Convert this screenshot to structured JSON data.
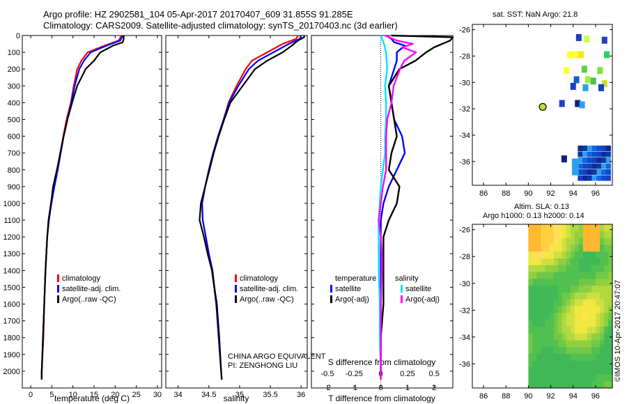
{
  "header": {
    "line1": "Argo profile: HZ 2902581_104 05-Apr-2017 20170407_609 31.855S 91.285E",
    "line2": "Climatology: CARS2009. Satellite-adjusted climatology: synTS_20170403.nc (3d earlier)"
  },
  "sst_panel": {
    "title": "sat. SST: NaN Argo: 21.8"
  },
  "sla_panel": {
    "title_line1": "Altim. SLA: 0.13",
    "title_line2": "Argo h1000: 0.13 h2000: 0.14"
  },
  "credit": {
    "line1": "CHINA ARGO EQUIVALENT",
    "line2": "PI: ZENGHONG LIU"
  },
  "watermark": "©IMOS 10-Apr-2017 20:47:07",
  "colors": {
    "climatology": "#ff0000",
    "satellite": "#0000ff",
    "argo": "#000000",
    "sal_satellite": "#00e5ff",
    "sal_argo": "#ff00ff"
  },
  "chart_data": [
    {
      "type": "line",
      "name": "temperature-profile",
      "xlabel": "temperature (deg C)",
      "ylabel": "",
      "xlim": [
        -2,
        31
      ],
      "ylim": [
        2100,
        0
      ],
      "xticks": [
        0,
        5,
        10,
        15,
        20,
        25,
        30
      ],
      "yticks": [
        0,
        100,
        200,
        300,
        400,
        500,
        600,
        700,
        800,
        900,
        1000,
        1100,
        1200,
        1300,
        1400,
        1500,
        1600,
        1700,
        1800,
        1900,
        2000
      ],
      "legend": [
        "climatology",
        "satellite-adj. clim.",
        "Argo(..raw -QC)"
      ],
      "series": [
        {
          "name": "climatology",
          "depth": [
            0,
            30,
            60,
            100,
            150,
            200,
            300,
            400,
            500,
            600,
            700,
            800,
            900,
            1000,
            1100,
            1200,
            1400,
            1600,
            1800,
            2000,
            2050
          ],
          "values": [
            21.5,
            20.8,
            17.5,
            13.5,
            12.0,
            11.0,
            10.2,
            9.5,
            8.5,
            7.7,
            7.0,
            6.3,
            5.5,
            4.8,
            4.3,
            3.9,
            3.5,
            3.2,
            3.0,
            2.6,
            2.6
          ]
        },
        {
          "name": "satellite-adj. clim.",
          "depth": [
            0,
            30,
            60,
            100,
            150,
            200,
            300,
            400,
            500,
            600,
            700,
            800,
            900,
            1000,
            1100,
            1200,
            1400,
            1600,
            1800,
            2000,
            2050
          ],
          "values": [
            21.8,
            21.2,
            18.0,
            14.2,
            12.6,
            11.5,
            10.4,
            9.6,
            8.7,
            7.8,
            7.1,
            6.4,
            5.6,
            4.9,
            4.3,
            3.9,
            3.5,
            3.2,
            2.9,
            2.6,
            2.6
          ]
        },
        {
          "name": "Argo(..raw -QC)",
          "depth": [
            0,
            20,
            40,
            60,
            100,
            150,
            200,
            300,
            400,
            500,
            600,
            700,
            800,
            900,
            1000,
            1100,
            1200,
            1400,
            1600,
            1800,
            2000,
            2050
          ],
          "values": [
            22.0,
            22.0,
            21.8,
            19.5,
            16.5,
            15.0,
            13.0,
            11.0,
            9.8,
            8.7,
            7.8,
            7.0,
            6.2,
            5.3,
            4.8,
            4.2,
            3.9,
            3.5,
            3.2,
            2.9,
            2.6,
            2.6
          ]
        }
      ]
    },
    {
      "type": "line",
      "name": "salinity-profile",
      "xlabel": "salinity",
      "xlim": [
        33.8,
        36.1
      ],
      "ylim": [
        2100,
        0
      ],
      "xticks": [
        "34",
        "34.5",
        "35",
        "35.5",
        "36"
      ],
      "legend": [
        "climatology",
        "satellite-adj. clim.",
        "Argo(..raw -QC)"
      ],
      "series": [
        {
          "name": "climatology",
          "depth": [
            0,
            20,
            50,
            100,
            150,
            200,
            300,
            400,
            500,
            600,
            700,
            800,
            900,
            1000,
            1100,
            1200,
            1300,
            1400,
            1600,
            1800,
            2000,
            2050
          ],
          "values": [
            35.95,
            35.92,
            35.7,
            35.45,
            35.2,
            35.1,
            34.95,
            34.82,
            34.74,
            34.65,
            34.57,
            34.5,
            34.44,
            34.39,
            34.4,
            34.45,
            34.5,
            34.55,
            34.62,
            34.66,
            34.7,
            34.71
          ]
        },
        {
          "name": "satellite-adj. clim.",
          "depth": [
            0,
            20,
            50,
            100,
            150,
            200,
            300,
            400,
            500,
            600,
            700,
            800,
            900,
            1000,
            1100,
            1200,
            1300,
            1400,
            1600,
            1800,
            2000,
            2050
          ],
          "values": [
            36.0,
            35.98,
            35.8,
            35.55,
            35.3,
            35.15,
            34.98,
            34.83,
            34.74,
            34.65,
            34.57,
            34.5,
            34.44,
            34.39,
            34.4,
            34.45,
            34.5,
            34.56,
            34.62,
            34.66,
            34.7,
            34.71
          ]
        },
        {
          "name": "Argo(..raw -QC)",
          "depth": [
            0,
            10,
            30,
            60,
            100,
            150,
            200,
            300,
            400,
            500,
            600,
            700,
            800,
            900,
            1000,
            1100,
            1200,
            1300,
            1400,
            1600,
            1800,
            2000,
            2050
          ],
          "values": [
            36.05,
            36.05,
            35.95,
            35.85,
            35.7,
            35.45,
            35.25,
            35.05,
            34.85,
            34.75,
            34.66,
            34.58,
            34.51,
            34.44,
            34.37,
            34.35,
            34.42,
            34.48,
            34.55,
            34.63,
            34.67,
            34.7,
            34.71
          ]
        }
      ]
    },
    {
      "type": "line",
      "name": "difference-profile",
      "xlabel": "T difference from climatology",
      "xlabel_top": "S difference from climatology",
      "xlim": [
        -2.6,
        2.7
      ],
      "ylim": [
        2100,
        0
      ],
      "xticks": [
        "-2",
        "-1",
        "0",
        "1",
        "2"
      ],
      "xticks_top": [
        "-0.5",
        "-0.25",
        "0",
        "0.25",
        "0.5"
      ],
      "legend": [
        {
          "group": "temperature",
          "items": [
            "satellite",
            "Argo(-adj)"
          ]
        },
        {
          "group": "salinity",
          "items": [
            "satellite",
            "Argo(-adj)"
          ]
        }
      ],
      "series": [
        {
          "name": "T satellite",
          "depth": [
            0,
            20,
            40,
            60,
            100,
            150,
            200,
            300,
            400,
            500,
            600,
            700,
            800,
            900,
            1000,
            1100,
            1200,
            1400,
            1600,
            1800,
            2000,
            2050
          ],
          "values": [
            0.2,
            0.4,
            0.5,
            0.9,
            0.6,
            0.6,
            0.5,
            0.3,
            0.4,
            0.5,
            0.8,
            0.9,
            0.6,
            0.3,
            0.1,
            0.0,
            0.0,
            0.0,
            0.0,
            0.0,
            0.0,
            0.0
          ]
        },
        {
          "name": "T Argo(-adj)",
          "depth": [
            0,
            10,
            30,
            50,
            70,
            100,
            150,
            200,
            300,
            400,
            500,
            600,
            700,
            800,
            900,
            1000,
            1100,
            1200,
            1400,
            1600,
            1800,
            2000,
            2050
          ],
          "values": [
            0.4,
            2.7,
            2.6,
            2.3,
            2.0,
            1.7,
            1.3,
            0.7,
            0.3,
            0.4,
            0.5,
            0.6,
            0.4,
            0.3,
            0.7,
            0.6,
            0.3,
            0.1,
            0.1,
            0.1,
            0.0,
            0.0,
            0.0
          ]
        },
        {
          "name": "S satellite",
          "depth": [
            0,
            50,
            100,
            200,
            300,
            400,
            500,
            600,
            700,
            800,
            900,
            1000,
            1100,
            1200,
            1300,
            1400,
            1600,
            1800,
            2000,
            2050
          ],
          "values": [
            0.0,
            0.03,
            0.05,
            0.06,
            0.04,
            0.05,
            0.05,
            0.04,
            0.04,
            0.02,
            0.0,
            -0.01,
            -0.02,
            -0.02,
            -0.02,
            -0.02,
            -0.01,
            -0.01,
            0.0,
            0.0
          ]
        },
        {
          "name": "S Argo(-adj)",
          "depth": [
            0,
            30,
            50,
            70,
            100,
            150,
            200,
            300,
            400,
            500,
            600,
            700,
            800,
            900,
            1000,
            1100,
            1200,
            1300,
            1400,
            1600,
            1800,
            2000,
            2050
          ],
          "values": [
            0.04,
            0.15,
            0.3,
            0.2,
            0.33,
            0.22,
            0.18,
            0.12,
            0.1,
            0.06,
            0.05,
            0.05,
            0.05,
            0.02,
            0.0,
            -0.02,
            0.0,
            0.01,
            0.01,
            0.0,
            0.0,
            0.0,
            0.0
          ]
        }
      ]
    },
    {
      "type": "heatmap",
      "name": "sst-map",
      "title": "sat. SST: NaN Argo: 21.8",
      "xticks": [
        "86",
        "88",
        "90",
        "92",
        "94",
        "96"
      ],
      "yticks": [
        "-26",
        "-28",
        "-30",
        "-32",
        "-34",
        "-36"
      ],
      "xlim": [
        85,
        97.5
      ],
      "ylim": [
        -37.8,
        -25.6
      ],
      "argo_position": {
        "lon": 91.285,
        "lat": -31.855
      }
    },
    {
      "type": "heatmap",
      "name": "sla-map",
      "title": "Altim. SLA: 0.13",
      "subtitle": "Argo h1000: 0.13 h2000: 0.14",
      "xticks": [
        "86",
        "88",
        "90",
        "92",
        "94",
        "96"
      ],
      "yticks": [
        "-26",
        "-28",
        "-30",
        "-32",
        "-34",
        "-36"
      ],
      "xlim": [
        85,
        97.5
      ],
      "ylim": [
        -37.8,
        -25.6
      ]
    }
  ]
}
